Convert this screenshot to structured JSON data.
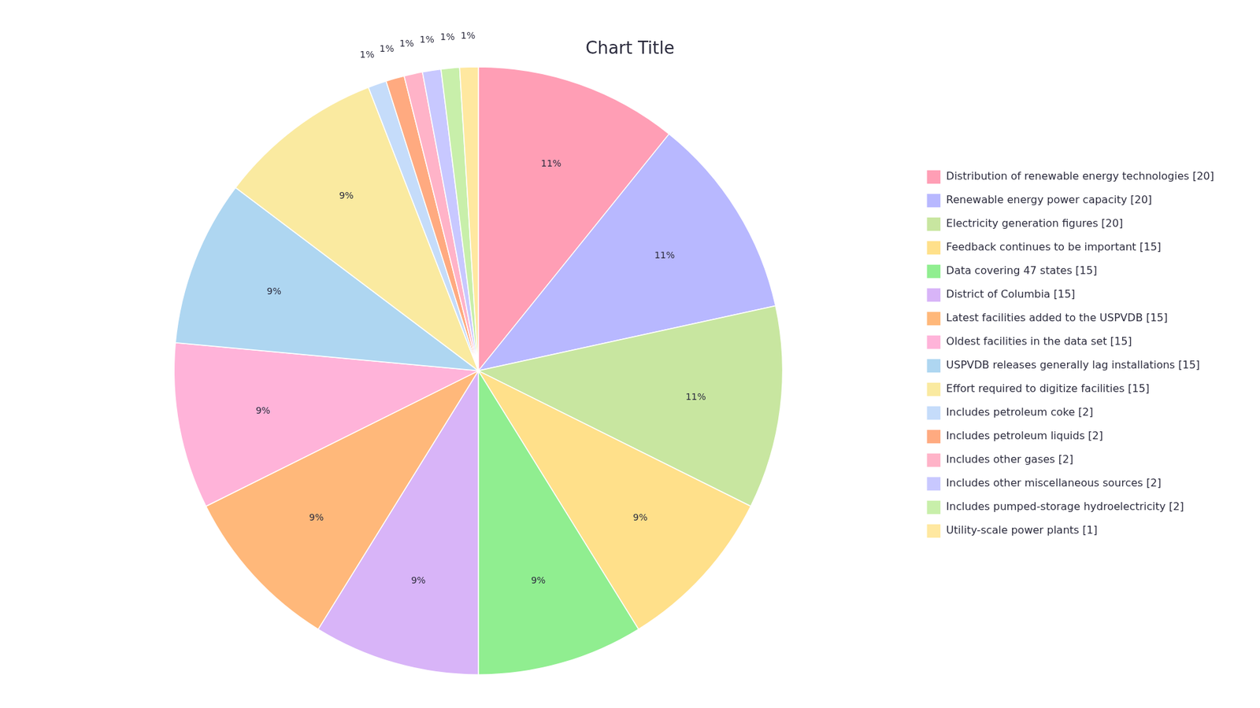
{
  "chart_data": {
    "type": "pie",
    "title": "Chart Title",
    "categories": [
      "Distribution of renewable energy technologies [20]",
      "Renewable energy power capacity [20]",
      "Electricity generation figures [20]",
      "Feedback continues to be important [15]",
      "Data covering 47 states [15]",
      "District of Columbia [15]",
      "Latest facilities added to the USPVDB [15]",
      "Oldest facilities in the data set [15]",
      "USPVDB releases generally lag installations [15]",
      "Effort required to digitize facilities [15]",
      "Includes petroleum coke [2]",
      "Includes petroleum liquids [2]",
      "Includes other gases [2]",
      "Includes other miscellaneous sources [2]",
      "Includes pumped-storage hydroelectricity [2]",
      "Utility-scale power plants [1]"
    ],
    "values": [
      11,
      11,
      11,
      9,
      9,
      9,
      9,
      9,
      9,
      9,
      1,
      1,
      1,
      1,
      1,
      1
    ],
    "value_labels": [
      "11%",
      "11%",
      "11%",
      "9%",
      "9%",
      "9%",
      "9%",
      "9%",
      "9%",
      "9%",
      "1%",
      "1%",
      "1%",
      "1%",
      "1%",
      "1%"
    ],
    "colors": [
      "#FF9EB5",
      "#B8B8FF",
      "#C8E6A0",
      "#FFE08A",
      "#90EE90",
      "#D8B4F8",
      "#FFB87A",
      "#FFB3D9",
      "#AED6F1",
      "#FAEAA0",
      "#C5DCFA",
      "#FFAA80",
      "#FFB3C8",
      "#C8C8FF",
      "#C8EFAA",
      "#FFE8A0"
    ],
    "data_labels": true,
    "legend": "right"
  }
}
